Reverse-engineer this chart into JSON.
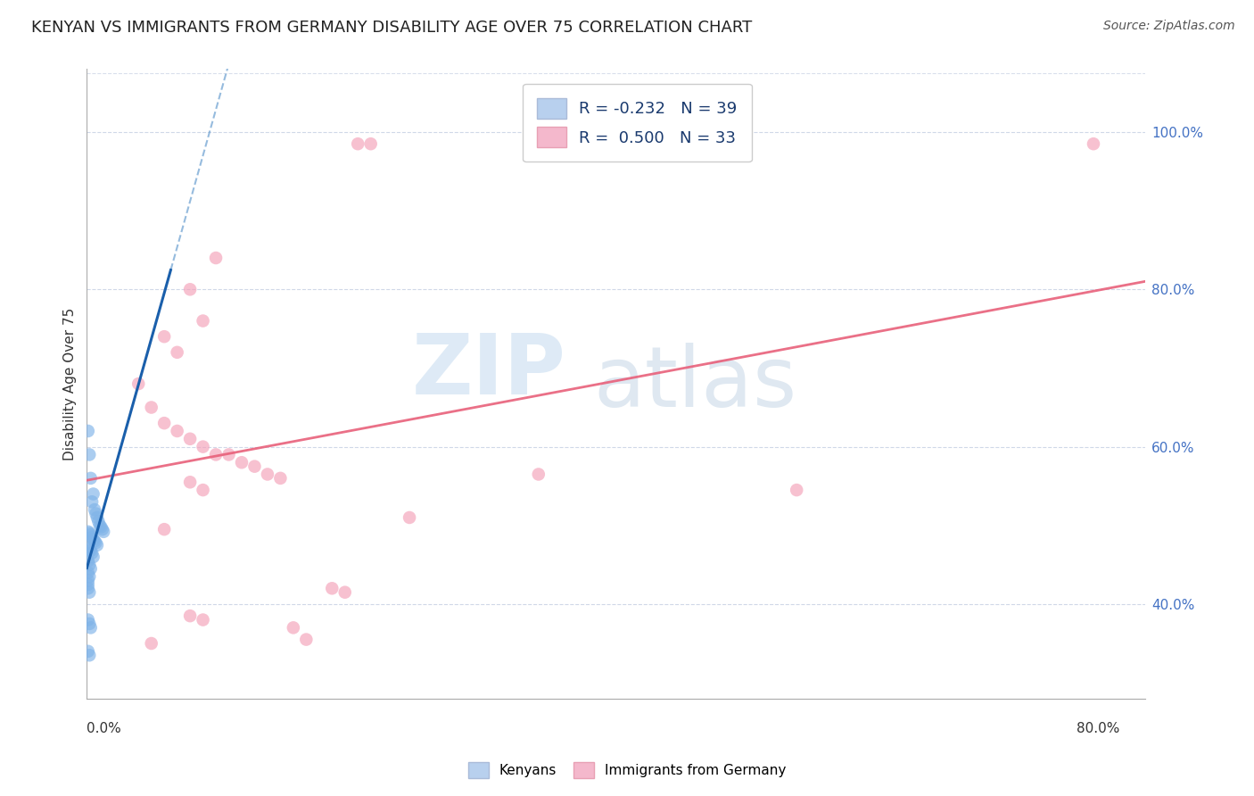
{
  "title": "KENYAN VS IMMIGRANTS FROM GERMANY DISABILITY AGE OVER 75 CORRELATION CHART",
  "source": "Source: ZipAtlas.com",
  "ylabel": "Disability Age Over 75",
  "ylabel_right_ticks": [
    "40.0%",
    "60.0%",
    "80.0%",
    "100.0%"
  ],
  "ylabel_right_vals": [
    0.4,
    0.6,
    0.8,
    1.0
  ],
  "legend_labels": [
    "Kenyans",
    "Immigrants from Germany"
  ],
  "kenyan_color": "#7fb3e8",
  "german_color": "#f4a0b8",
  "kenyan_points": [
    [
      0.001,
      0.62
    ],
    [
      0.002,
      0.59
    ],
    [
      0.003,
      0.56
    ],
    [
      0.004,
      0.53
    ],
    [
      0.005,
      0.54
    ],
    [
      0.006,
      0.52
    ],
    [
      0.007,
      0.515
    ],
    [
      0.008,
      0.51
    ],
    [
      0.009,
      0.505
    ],
    [
      0.01,
      0.5
    ],
    [
      0.011,
      0.498
    ],
    [
      0.012,
      0.495
    ],
    [
      0.013,
      0.492
    ],
    [
      0.001,
      0.492
    ],
    [
      0.002,
      0.49
    ],
    [
      0.003,
      0.488
    ],
    [
      0.004,
      0.485
    ],
    [
      0.005,
      0.482
    ],
    [
      0.006,
      0.48
    ],
    [
      0.007,
      0.478
    ],
    [
      0.008,
      0.475
    ],
    [
      0.001,
      0.472
    ],
    [
      0.002,
      0.47
    ],
    [
      0.003,
      0.468
    ],
    [
      0.004,
      0.465
    ],
    [
      0.005,
      0.46
    ],
    [
      0.001,
      0.455
    ],
    [
      0.002,
      0.45
    ],
    [
      0.003,
      0.445
    ],
    [
      0.001,
      0.44
    ],
    [
      0.002,
      0.435
    ],
    [
      0.001,
      0.43
    ],
    [
      0.001,
      0.425
    ],
    [
      0.001,
      0.42
    ],
    [
      0.002,
      0.415
    ],
    [
      0.001,
      0.38
    ],
    [
      0.002,
      0.375
    ],
    [
      0.003,
      0.37
    ],
    [
      0.001,
      0.34
    ],
    [
      0.002,
      0.335
    ]
  ],
  "german_points": [
    [
      0.21,
      0.985
    ],
    [
      0.22,
      0.985
    ],
    [
      0.78,
      0.985
    ],
    [
      0.1,
      0.84
    ],
    [
      0.08,
      0.8
    ],
    [
      0.09,
      0.76
    ],
    [
      0.06,
      0.74
    ],
    [
      0.07,
      0.72
    ],
    [
      0.04,
      0.68
    ],
    [
      0.05,
      0.65
    ],
    [
      0.06,
      0.63
    ],
    [
      0.07,
      0.62
    ],
    [
      0.08,
      0.61
    ],
    [
      0.09,
      0.6
    ],
    [
      0.1,
      0.59
    ],
    [
      0.11,
      0.59
    ],
    [
      0.12,
      0.58
    ],
    [
      0.13,
      0.575
    ],
    [
      0.14,
      0.565
    ],
    [
      0.15,
      0.56
    ],
    [
      0.08,
      0.555
    ],
    [
      0.09,
      0.545
    ],
    [
      0.35,
      0.565
    ],
    [
      0.19,
      0.42
    ],
    [
      0.2,
      0.415
    ],
    [
      0.08,
      0.385
    ],
    [
      0.09,
      0.38
    ],
    [
      0.16,
      0.37
    ],
    [
      0.05,
      0.35
    ],
    [
      0.17,
      0.355
    ],
    [
      0.55,
      0.545
    ],
    [
      0.25,
      0.51
    ],
    [
      0.06,
      0.495
    ]
  ],
  "xlim": [
    0.0,
    0.82
  ],
  "ylim": [
    0.28,
    1.08
  ],
  "grid_color": "#d0d8e8",
  "grid_yticks": [
    0.4,
    0.6,
    0.8,
    1.0
  ]
}
